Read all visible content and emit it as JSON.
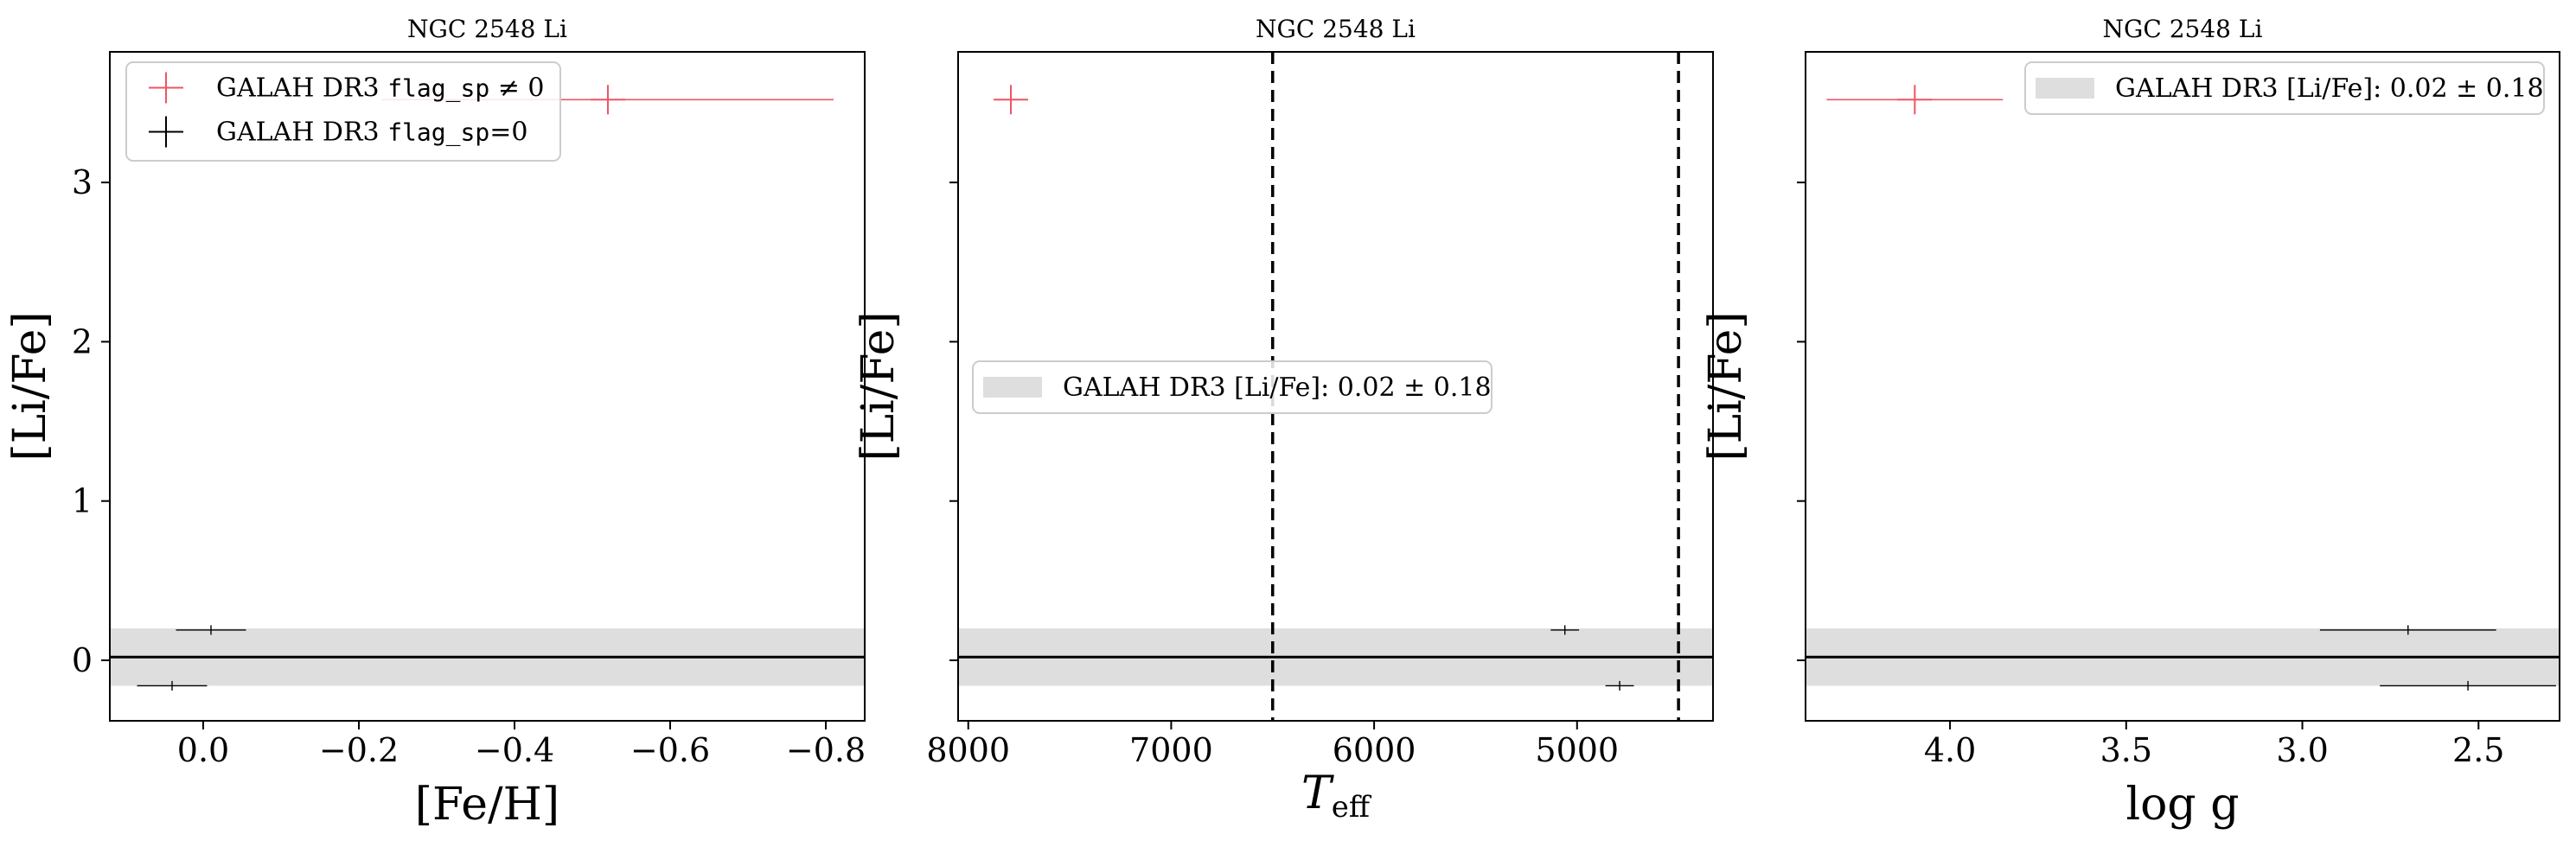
{
  "chart_data": [
    {
      "type": "scatter",
      "title": "NGC 2548 Li",
      "xlabel": "[Fe/H]",
      "ylabel": "[Li/Fe]",
      "xlim": [
        0.12,
        -0.85
      ],
      "ylim": [
        -0.38,
        3.82
      ],
      "x_inverted": true,
      "xticks": [
        0.0,
        -0.2,
        -0.4,
        -0.6,
        -0.8
      ],
      "xtick_labels": [
        "0.0",
        "−0.2",
        "−0.4",
        "−0.6",
        "−0.8"
      ],
      "yticks": [
        0,
        1,
        2,
        3
      ],
      "ytick_labels": [
        "0",
        "1",
        "2",
        "3"
      ],
      "reference": {
        "value": 0.02,
        "band": [
          -0.16,
          0.2
        ]
      },
      "legend": {
        "placement": "upper-left",
        "entries": [
          {
            "prefix": "GALAH DR3 ",
            "code": "flag_sp",
            "suffix": " ≠ 0",
            "color": "#ee5566",
            "marker": "plus"
          },
          {
            "prefix": "GALAH DR3 ",
            "code": "flag_sp",
            "suffix": "=0",
            "color": "#000000",
            "marker": "plus"
          }
        ]
      },
      "series": [
        {
          "color": "#ee5566",
          "flag": "nonzero",
          "points": [
            {
              "x": -0.52,
              "y": 3.52,
              "xerr_low": 0.29,
              "xerr_high": 0.29,
              "yerr": 0.08
            }
          ]
        },
        {
          "color": "#000000",
          "flag": "zero",
          "points": [
            {
              "x": -0.01,
              "y": 0.19,
              "xerr_low": 0.045,
              "xerr_high": 0.045,
              "yerr": 0.03
            },
            {
              "x": 0.04,
              "y": -0.16,
              "xerr_low": 0.045,
              "xerr_high": 0.045,
              "yerr": 0.03
            }
          ]
        }
      ]
    },
    {
      "type": "scatter",
      "title": "NGC 2548 Li",
      "xlabel": "T_eff",
      "ylabel": "[Li/Fe]",
      "xlim": [
        8050,
        4330
      ],
      "ylim": [
        -0.38,
        3.82
      ],
      "x_inverted": true,
      "xticks": [
        8000,
        7000,
        6000,
        5000
      ],
      "xtick_labels": [
        "8000",
        "7000",
        "6000",
        "5000"
      ],
      "yticks": [
        0,
        1,
        2,
        3
      ],
      "ytick_labels": [
        "",
        "",
        "",
        ""
      ],
      "vlines": [
        6500,
        4500
      ],
      "reference": {
        "value": 0.02,
        "band": [
          -0.16,
          0.2
        ]
      },
      "legend": {
        "placement": "center-left",
        "entries": [
          {
            "label": "GALAH DR3 [Li/Fe]: 0.02 ± 0.18",
            "color": "#dedede",
            "marker": "band"
          }
        ]
      },
      "series": [
        {
          "color": "#ee5566",
          "flag": "nonzero",
          "points": [
            {
              "x": 7790,
              "y": 3.52,
              "xerr_low": 70,
              "xerr_high": 70,
              "yerr": 0.08
            }
          ]
        },
        {
          "color": "#000000",
          "flag": "zero",
          "points": [
            {
              "x": 5060,
              "y": 0.19,
              "xerr_low": 70,
              "xerr_high": 70,
              "yerr": 0.03
            },
            {
              "x": 4790,
              "y": -0.16,
              "xerr_low": 70,
              "xerr_high": 70,
              "yerr": 0.03
            }
          ]
        }
      ]
    },
    {
      "type": "scatter",
      "title": "NGC 2548 Li",
      "xlabel": "log g",
      "ylabel": "[Li/Fe]",
      "xlim": [
        4.41,
        2.27
      ],
      "ylim": [
        -0.38,
        3.82
      ],
      "x_inverted": true,
      "xticks": [
        4.0,
        3.5,
        3.0,
        2.5
      ],
      "xtick_labels": [
        "4.0",
        "3.5",
        "3.0",
        "2.5"
      ],
      "yticks": [
        0,
        1,
        2,
        3
      ],
      "ytick_labels": [
        "",
        "",
        "",
        ""
      ],
      "reference": {
        "value": 0.02,
        "band": [
          -0.16,
          0.2
        ]
      },
      "legend": {
        "placement": "upper-right",
        "entries": [
          {
            "label": "GALAH DR3 [Li/Fe]: 0.02 ± 0.18",
            "color": "#dedede",
            "marker": "band"
          }
        ]
      },
      "series": [
        {
          "color": "#ee5566",
          "flag": "nonzero",
          "points": [
            {
              "x": 4.1,
              "y": 3.52,
              "xerr_low": 0.25,
              "xerr_high": 0.25,
              "yerr": 0.08
            }
          ]
        },
        {
          "color": "#000000",
          "flag": "zero",
          "points": [
            {
              "x": 2.7,
              "y": 0.19,
              "xerr_low": 0.25,
              "xerr_high": 0.25,
              "yerr": 0.03
            },
            {
              "x": 2.53,
              "y": -0.16,
              "xerr_low": 0.25,
              "xerr_high": 0.25,
              "yerr": 0.03
            }
          ]
        }
      ]
    }
  ]
}
